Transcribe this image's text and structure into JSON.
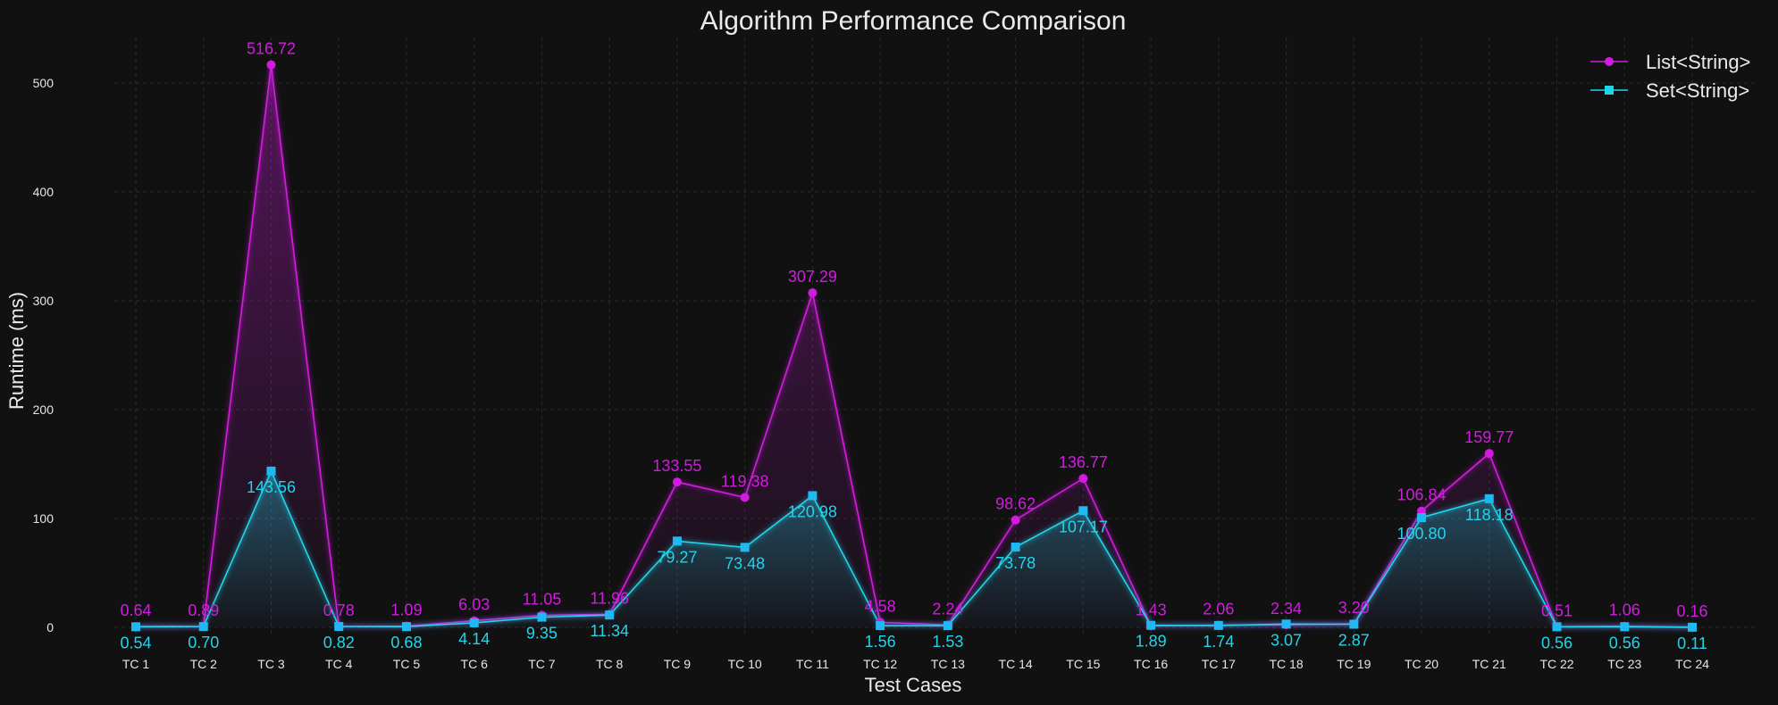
{
  "colors": {
    "background": "#111111",
    "list_series": "#d21be0",
    "set_series": "#22d4ea",
    "set_marker": "#1fb8f0",
    "grid": "#2a2a2a",
    "text": "#eaeaea"
  },
  "chart_data": {
    "type": "line",
    "title": "Algorithm Performance Comparison",
    "xlabel": "Test Cases",
    "ylabel": "Runtime (ms)",
    "ylim": [
      0,
      540
    ],
    "yticks": [
      0,
      100,
      200,
      300,
      400,
      500
    ],
    "grid": true,
    "legend_position": "top-right",
    "categories": [
      "TC 1",
      "TC 2",
      "TC 3",
      "TC 4",
      "TC 5",
      "TC 6",
      "TC 7",
      "TC 8",
      "TC 9",
      "TC 10",
      "TC 11",
      "TC 12",
      "TC 13",
      "TC 14",
      "TC 15",
      "TC 16",
      "TC 17",
      "TC 18",
      "TC 19",
      "TC 20",
      "TC 21",
      "TC 22",
      "TC 23",
      "TC 24"
    ],
    "series": [
      {
        "name": "List<String>",
        "marker": "circle",
        "values": [
          0.64,
          0.89,
          516.72,
          0.78,
          1.09,
          6.03,
          11.05,
          11.96,
          133.55,
          119.38,
          307.29,
          4.58,
          2.24,
          98.62,
          136.77,
          1.43,
          2.06,
          2.34,
          3.2,
          106.84,
          159.77,
          0.51,
          1.06,
          0.16
        ],
        "labels": [
          "0.64",
          "0.89",
          "516.72",
          "0.78",
          "1.09",
          "6.03",
          "11.05",
          "11.96",
          "133.55",
          "119.38",
          "307.29",
          "4.58",
          "2.24",
          "98.62",
          "136.77",
          "1.43",
          "2.06",
          "2.34",
          "3.20",
          "106.84",
          "159.77",
          "0.51",
          "1.06",
          "0.16"
        ]
      },
      {
        "name": "Set<String>",
        "marker": "square",
        "values": [
          0.54,
          0.7,
          143.56,
          0.82,
          0.68,
          4.14,
          9.35,
          11.34,
          79.27,
          73.48,
          120.98,
          1.56,
          1.53,
          73.78,
          107.17,
          1.89,
          1.74,
          3.07,
          2.87,
          100.8,
          118.18,
          0.56,
          0.56,
          0.11
        ],
        "labels": [
          "0.54",
          "0.70",
          "143.56",
          "0.82",
          "0.68",
          "4.14",
          "9.35",
          "11.34",
          "79.27",
          "73.48",
          "120.98",
          "1.56",
          "1.53",
          "73.78",
          "107.17",
          "1.89",
          "1.74",
          "3.07",
          "2.87",
          "100.80",
          "118.18",
          "0.56",
          "0.56",
          "0.11"
        ]
      }
    ]
  }
}
